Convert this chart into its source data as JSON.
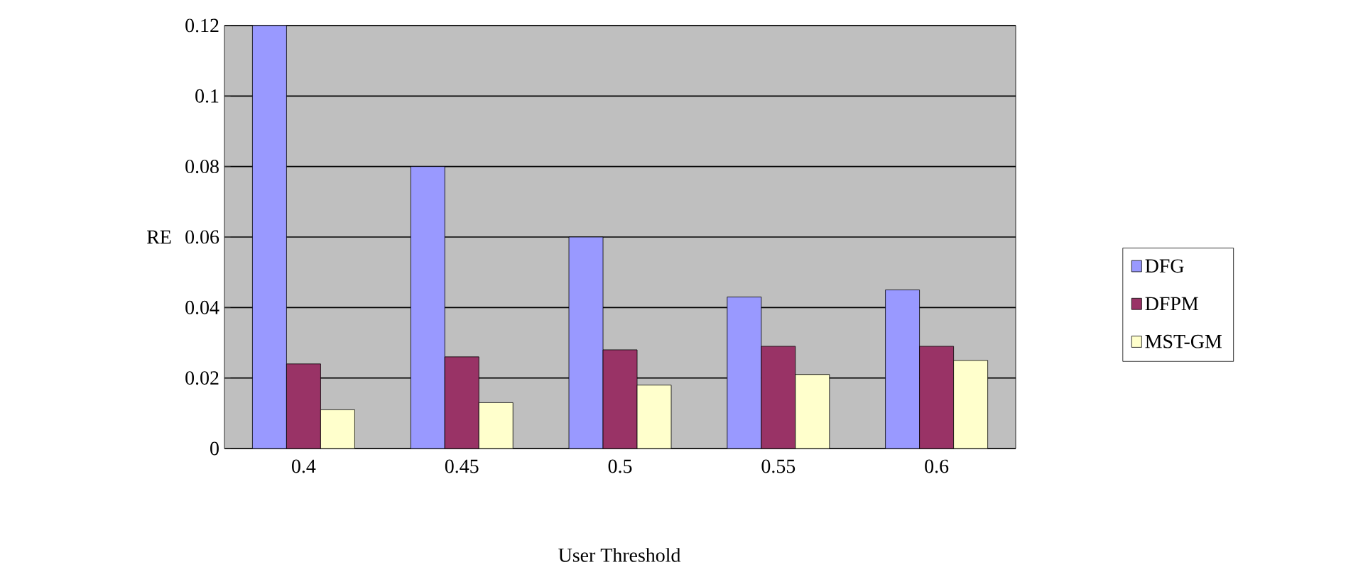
{
  "chart_data": {
    "type": "bar",
    "xlabel": "User Threshold",
    "ylabel": "RE",
    "categories": [
      "0.4",
      "0.45",
      "0.5",
      "0.55",
      "0.6"
    ],
    "series": [
      {
        "name": "DFG",
        "color": "#9999ff",
        "values": [
          0.12,
          0.08,
          0.06,
          0.043,
          0.045
        ]
      },
      {
        "name": "DFPM",
        "color": "#993366",
        "values": [
          0.024,
          0.026,
          0.028,
          0.029,
          0.029
        ]
      },
      {
        "name": "MST-GM",
        "color": "#ffffcc",
        "values": [
          0.011,
          0.013,
          0.018,
          0.021,
          0.025
        ]
      }
    ],
    "ylim": [
      0,
      0.12
    ],
    "yticks": [
      0,
      0.02,
      0.04,
      0.06,
      0.08,
      0.1,
      0.12
    ],
    "grid": "y",
    "legend": "right"
  }
}
